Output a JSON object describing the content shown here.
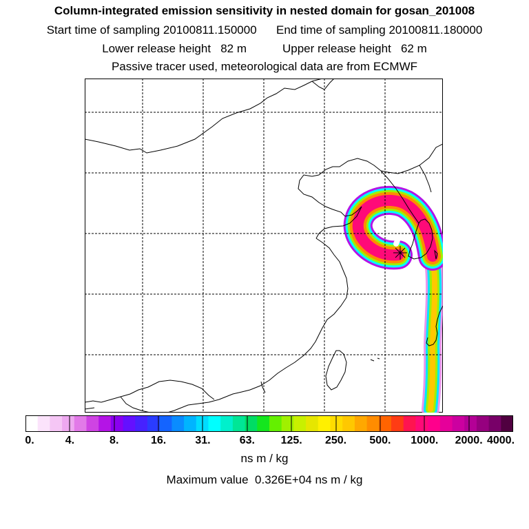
{
  "header": {
    "title": "Column-integrated emission sensitivity in nested domain for gosan_201008",
    "start_label": "Start time of sampling 20100811.150000",
    "end_label": "End time of sampling 20100811.180000",
    "lower_label": "Lower release height   82 m",
    "upper_label": "Upper release height   62 m",
    "tracer_note": "Passive tracer used, meteorological data are from ECMWF"
  },
  "map": {
    "grid": true,
    "grid_style": "dashed",
    "features": [
      "coastline",
      "national-borders",
      "release-point-marker",
      "sensitivity-plume"
    ],
    "marker_icon": "star-burst-icon"
  },
  "colorbar": {
    "tick_labels": [
      "0.",
      "4.",
      "8.",
      "16.",
      "31.",
      "63.",
      "125.",
      "250.",
      "500.",
      "1000.",
      "2000.",
      "4000."
    ],
    "colors": [
      "#ffffff",
      "#fbe3fb",
      "#f5c6f5",
      "#eea8f0",
      "#e27ae8",
      "#cf44e3",
      "#b414e6",
      "#8a00f0",
      "#6410ff",
      "#4622ff",
      "#2a3cff",
      "#1464ff",
      "#0a8cff",
      "#00b4ff",
      "#00dcff",
      "#00ffff",
      "#00f0cc",
      "#00e696",
      "#00dc64",
      "#14e61e",
      "#64f000",
      "#a0f000",
      "#c8f000",
      "#e6e600",
      "#fff000",
      "#ffdc00",
      "#ffc800",
      "#ffa800",
      "#ff8c00",
      "#ff6400",
      "#ff3c14",
      "#ff1450",
      "#ff0a78",
      "#ff008c",
      "#e6009a",
      "#cc00a0",
      "#b40096",
      "#96007f",
      "#780068",
      "#500040"
    ],
    "units": "ns m / kg"
  },
  "footer": {
    "max_value": "Maximum value  0.326E+04 ns m / kg"
  }
}
